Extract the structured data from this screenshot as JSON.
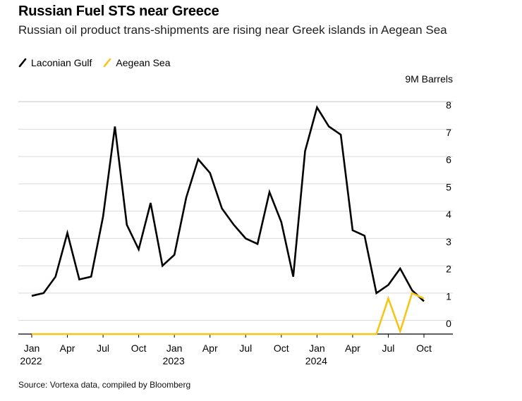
{
  "header": {
    "title": "Russian Fuel STS near Greece",
    "subtitle": "Russian oil product trans-shipments are rising near Greek islands in Aegean Sea"
  },
  "footer": {
    "source": "Source: Vortexa data, compiled by Bloomberg"
  },
  "colors": {
    "laconian": "#000000",
    "aegean": "#f5c518",
    "grid": "#d9d9d9"
  },
  "chart_data": {
    "type": "line",
    "title": "Russian Fuel STS near Greece",
    "subtitle": "Russian oil product trans-shipments are rising near Greek islands in Aegean Sea",
    "unit_label": "9M Barrels",
    "x": [
      "2022-01",
      "2022-02",
      "2022-03",
      "2022-04",
      "2022-05",
      "2022-06",
      "2022-07",
      "2022-08",
      "2022-09",
      "2022-10",
      "2022-11",
      "2022-12",
      "2023-01",
      "2023-02",
      "2023-03",
      "2023-04",
      "2023-05",
      "2023-06",
      "2023-07",
      "2023-08",
      "2023-09",
      "2023-10",
      "2023-11",
      "2023-12",
      "2024-01",
      "2024-02",
      "2024-03",
      "2024-04",
      "2024-05",
      "2024-06",
      "2024-07",
      "2024-08",
      "2024-09",
      "2024-10"
    ],
    "x_ticks": [
      {
        "x": "2022-01",
        "label": "Jan",
        "year": "2022"
      },
      {
        "x": "2022-04",
        "label": "Apr",
        "year": ""
      },
      {
        "x": "2022-07",
        "label": "Jul",
        "year": ""
      },
      {
        "x": "2022-10",
        "label": "Oct",
        "year": ""
      },
      {
        "x": "2023-01",
        "label": "Jan",
        "year": "2023"
      },
      {
        "x": "2023-04",
        "label": "Apr",
        "year": ""
      },
      {
        "x": "2023-07",
        "label": "Jul",
        "year": ""
      },
      {
        "x": "2023-10",
        "label": "Oct",
        "year": ""
      },
      {
        "x": "2024-01",
        "label": "Jan",
        "year": "2024"
      },
      {
        "x": "2024-04",
        "label": "Apr",
        "year": ""
      },
      {
        "x": "2024-07",
        "label": "Jul",
        "year": ""
      },
      {
        "x": "2024-10",
        "label": "Oct",
        "year": ""
      }
    ],
    "y_ticks": [
      "0",
      "1",
      "2",
      "3",
      "4",
      "5",
      "6",
      "7",
      "8"
    ],
    "ylim": [
      0,
      8.5
    ],
    "grid": true,
    "legend_position": "top-left",
    "series": [
      {
        "name": "Laconian Gulf",
        "color": "#000000",
        "values": [
          1.4,
          1.5,
          2.1,
          3.7,
          2.0,
          2.1,
          4.3,
          7.6,
          4.0,
          3.1,
          4.8,
          2.5,
          2.9,
          5.0,
          6.4,
          5.9,
          4.6,
          4.0,
          3.5,
          3.3,
          5.2,
          4.1,
          2.1,
          6.7,
          8.3,
          7.6,
          7.3,
          3.8,
          3.6,
          1.5,
          1.8,
          2.4,
          1.6,
          1.2
        ]
      },
      {
        "name": "Aegean Sea",
        "color": "#f5c518",
        "values": [
          0,
          0,
          0,
          0,
          0,
          0,
          0,
          0,
          0,
          0,
          0,
          0,
          0,
          0,
          0,
          0,
          0,
          0,
          0,
          0,
          0,
          0,
          0,
          0,
          0,
          0,
          0,
          0,
          0,
          0,
          1.3,
          0.1,
          1.5,
          1.3
        ]
      }
    ]
  }
}
